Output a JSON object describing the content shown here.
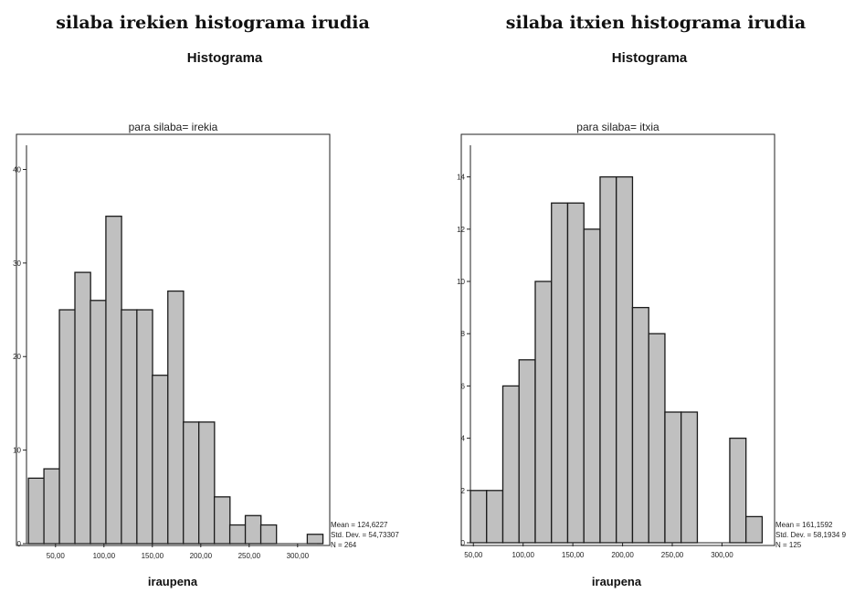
{
  "captions": {
    "left": "silaba irekien histograma irudia",
    "right": "silaba itxien histograma irudia"
  },
  "chart_data": [
    {
      "type": "bar",
      "title": "Histograma",
      "subtitle": "para silaba= irekia",
      "xlabel": "iraupena",
      "ylabel": "",
      "x_ticks": [
        "50,00",
        "100,00",
        "150,00",
        "200,00",
        "250,00",
        "300,00"
      ],
      "y_ticks": [
        "0",
        "10",
        "20",
        "30",
        "40"
      ],
      "xlim": [
        20,
        320
      ],
      "ylim": [
        0,
        42
      ],
      "bin_width": 16.2,
      "bin_starts": [
        22,
        38,
        54,
        70,
        86,
        102,
        118,
        134,
        150,
        166,
        182,
        198,
        214,
        230,
        246,
        262,
        278,
        294,
        310
      ],
      "values": [
        7,
        8,
        25,
        29,
        26,
        35,
        25,
        25,
        18,
        27,
        13,
        13,
        5,
        2,
        3,
        2,
        0,
        0,
        1
      ],
      "stats": {
        "mean": "Mean = 124,6227",
        "std": "Std. Dev. = 54,73307",
        "n": "N = 264"
      }
    },
    {
      "type": "bar",
      "title": "Histograma",
      "subtitle": "para silaba= itxia",
      "xlabel": "iraupena",
      "ylabel": "",
      "x_ticks": [
        "50,00",
        "100,00",
        "150,00",
        "200,00",
        "250,00",
        "300,00"
      ],
      "y_ticks": [
        "0",
        "2",
        "4",
        "6",
        "8",
        "10",
        "12",
        "14"
      ],
      "xlim": [
        47,
        340
      ],
      "ylim": [
        0,
        15
      ],
      "bin_width": 16.3,
      "bin_starts": [
        47,
        63.3,
        79.6,
        95.9,
        112.2,
        128.5,
        144.8,
        161.1,
        177.4,
        193.7,
        210.0,
        226.3,
        242.6,
        258.9,
        275.2,
        291.5,
        307.8,
        324.1
      ],
      "values": [
        2,
        2,
        6,
        7,
        10,
        13,
        13,
        12,
        14,
        14,
        9,
        8,
        5,
        5,
        0,
        0,
        4,
        1
      ],
      "stats": {
        "mean": "Mean = 161,1592",
        "std": "Std. Dev. = 58,1934 9",
        "n": "N = 125"
      }
    }
  ]
}
